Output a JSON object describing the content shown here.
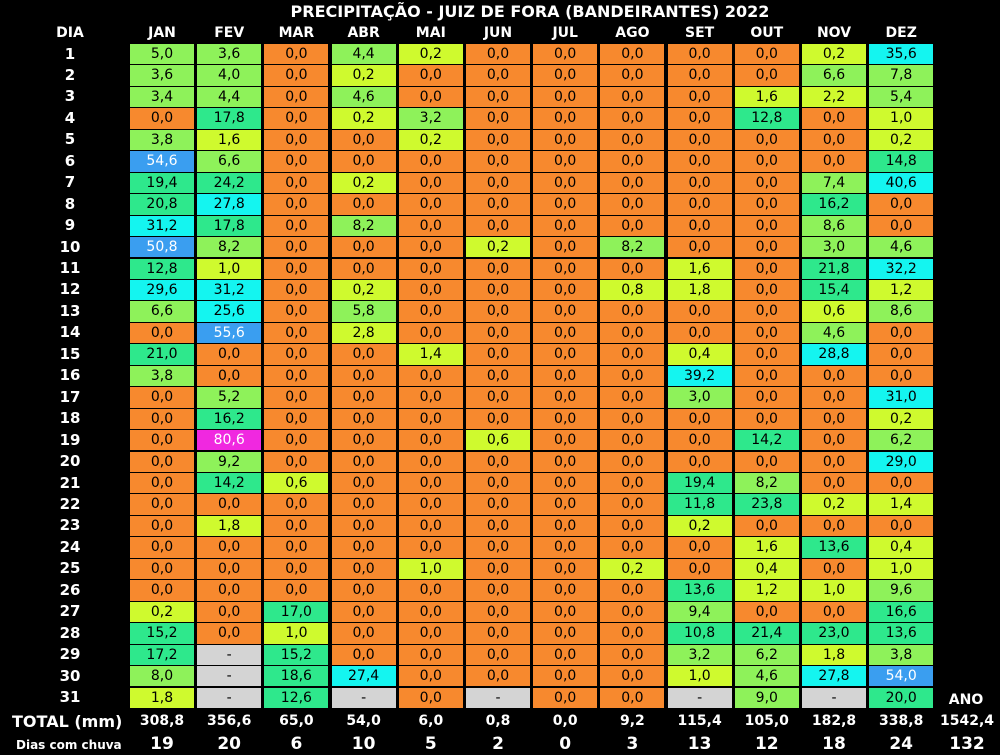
{
  "title": "PRECIPITAÇÃO - JUIZ DE FORA (BANDEIRANTES) 2022",
  "day_header": "DIA",
  "year_header": "ANO",
  "total_label": "TOTAL (mm)",
  "rainy_label": "Dias com chuva",
  "year_total": "1542,4",
  "year_rainy": "132",
  "colors": {
    "zero": "#f7892e",
    "vlow": "#cffa2e",
    "low": "#8ef25a",
    "mid": "#2ee88c",
    "high": "#14f5f0",
    "vhigh": "#3a9ef0",
    "extreme": "#f028e0",
    "na": "#d4d4d4"
  },
  "chart_data": {
    "type": "table",
    "title": "PRECIPITAÇÃO - JUIZ DE FORA (BANDEIRANTES) 2022",
    "months": [
      "JAN",
      "FEV",
      "MAR",
      "ABR",
      "MAI",
      "JUN",
      "JUL",
      "AGO",
      "SET",
      "OUT",
      "NOV",
      "DEZ"
    ],
    "days": [
      "1",
      "2",
      "3",
      "4",
      "5",
      "6",
      "7",
      "8",
      "9",
      "10",
      "11",
      "12",
      "13",
      "14",
      "15",
      "16",
      "17",
      "18",
      "19",
      "20",
      "21",
      "22",
      "23",
      "24",
      "25",
      "26",
      "27",
      "28",
      "29",
      "30",
      "31"
    ],
    "values": [
      [
        "5,0",
        "3,6",
        "0,0",
        "4,4",
        "0,2",
        "0,0",
        "0,0",
        "0,0",
        "0,0",
        "0,0",
        "0,2",
        "35,6"
      ],
      [
        "3,6",
        "4,0",
        "0,0",
        "0,2",
        "0,0",
        "0,0",
        "0,0",
        "0,0",
        "0,0",
        "0,0",
        "6,6",
        "7,8"
      ],
      [
        "3,4",
        "4,4",
        "0,0",
        "4,6",
        "0,0",
        "0,0",
        "0,0",
        "0,0",
        "0,0",
        "1,6",
        "2,2",
        "5,4"
      ],
      [
        "0,0",
        "17,8",
        "0,0",
        "0,2",
        "3,2",
        "0,0",
        "0,0",
        "0,0",
        "0,0",
        "12,8",
        "0,0",
        "1,0"
      ],
      [
        "3,8",
        "1,6",
        "0,0",
        "0,0",
        "0,2",
        "0,0",
        "0,0",
        "0,0",
        "0,0",
        "0,0",
        "0,0",
        "0,2"
      ],
      [
        "54,6",
        "6,6",
        "0,0",
        "0,0",
        "0,0",
        "0,0",
        "0,0",
        "0,0",
        "0,0",
        "0,0",
        "0,0",
        "14,8"
      ],
      [
        "19,4",
        "24,2",
        "0,0",
        "0,2",
        "0,0",
        "0,0",
        "0,0",
        "0,0",
        "0,0",
        "0,0",
        "7,4",
        "40,6"
      ],
      [
        "20,8",
        "27,8",
        "0,0",
        "0,0",
        "0,0",
        "0,0",
        "0,0",
        "0,0",
        "0,0",
        "0,0",
        "16,2",
        "0,0"
      ],
      [
        "31,2",
        "17,8",
        "0,0",
        "8,2",
        "0,0",
        "0,0",
        "0,0",
        "0,0",
        "0,0",
        "0,0",
        "8,6",
        "0,0"
      ],
      [
        "50,8",
        "8,2",
        "0,0",
        "0,0",
        "0,0",
        "0,2",
        "0,0",
        "8,2",
        "0,0",
        "0,0",
        "3,0",
        "4,6"
      ],
      [
        "12,8",
        "1,0",
        "0,0",
        "0,0",
        "0,0",
        "0,0",
        "0,0",
        "0,0",
        "1,6",
        "0,0",
        "21,8",
        "32,2"
      ],
      [
        "29,6",
        "31,2",
        "0,0",
        "0,2",
        "0,0",
        "0,0",
        "0,0",
        "0,8",
        "1,8",
        "0,0",
        "15,4",
        "1,2"
      ],
      [
        "6,6",
        "25,6",
        "0,0",
        "5,8",
        "0,0",
        "0,0",
        "0,0",
        "0,0",
        "0,0",
        "0,0",
        "0,6",
        "8,6"
      ],
      [
        "0,0",
        "55,6",
        "0,0",
        "2,8",
        "0,0",
        "0,0",
        "0,0",
        "0,0",
        "0,0",
        "0,0",
        "4,6",
        "0,0"
      ],
      [
        "21,0",
        "0,0",
        "0,0",
        "0,0",
        "1,4",
        "0,0",
        "0,0",
        "0,0",
        "0,4",
        "0,0",
        "28,8",
        "0,0"
      ],
      [
        "3,8",
        "0,0",
        "0,0",
        "0,0",
        "0,0",
        "0,0",
        "0,0",
        "0,0",
        "39,2",
        "0,0",
        "0,0",
        "0,0"
      ],
      [
        "0,0",
        "5,2",
        "0,0",
        "0,0",
        "0,0",
        "0,0",
        "0,0",
        "0,0",
        "3,0",
        "0,0",
        "0,0",
        "31,0"
      ],
      [
        "0,0",
        "16,2",
        "0,0",
        "0,0",
        "0,0",
        "0,0",
        "0,0",
        "0,0",
        "0,0",
        "0,0",
        "0,0",
        "0,2"
      ],
      [
        "0,0",
        "80,6",
        "0,0",
        "0,0",
        "0,0",
        "0,6",
        "0,0",
        "0,0",
        "0,0",
        "14,2",
        "0,0",
        "6,2"
      ],
      [
        "0,0",
        "9,2",
        "0,0",
        "0,0",
        "0,0",
        "0,0",
        "0,0",
        "0,0",
        "0,0",
        "0,0",
        "0,0",
        "29,0"
      ],
      [
        "0,0",
        "14,2",
        "0,6",
        "0,0",
        "0,0",
        "0,0",
        "0,0",
        "0,0",
        "19,4",
        "8,2",
        "0,0",
        "0,0"
      ],
      [
        "0,0",
        "0,0",
        "0,0",
        "0,0",
        "0,0",
        "0,0",
        "0,0",
        "0,0",
        "11,8",
        "23,8",
        "0,2",
        "1,4"
      ],
      [
        "0,0",
        "1,8",
        "0,0",
        "0,0",
        "0,0",
        "0,0",
        "0,0",
        "0,0",
        "0,2",
        "0,0",
        "0,0",
        "0,0"
      ],
      [
        "0,0",
        "0,0",
        "0,0",
        "0,0",
        "0,0",
        "0,0",
        "0,0",
        "0,0",
        "0,0",
        "1,6",
        "13,6",
        "0,4"
      ],
      [
        "0,0",
        "0,0",
        "0,0",
        "0,0",
        "1,0",
        "0,0",
        "0,0",
        "0,2",
        "0,0",
        "0,4",
        "0,0",
        "1,0"
      ],
      [
        "0,0",
        "0,0",
        "0,0",
        "0,0",
        "0,0",
        "0,0",
        "0,0",
        "0,0",
        "13,6",
        "1,2",
        "1,0",
        "9,6"
      ],
      [
        "0,2",
        "0,0",
        "17,0",
        "0,0",
        "0,0",
        "0,0",
        "0,0",
        "0,0",
        "9,4",
        "0,0",
        "0,0",
        "16,6"
      ],
      [
        "15,2",
        "0,0",
        "1,0",
        "0,0",
        "0,0",
        "0,0",
        "0,0",
        "0,0",
        "10,8",
        "21,4",
        "23,0",
        "13,6"
      ],
      [
        "17,2",
        "-",
        "15,2",
        "0,0",
        "0,0",
        "0,0",
        "0,0",
        "0,0",
        "3,2",
        "6,2",
        "1,8",
        "3,8"
      ],
      [
        "8,0",
        "-",
        "18,6",
        "27,4",
        "0,0",
        "0,0",
        "0,0",
        "0,0",
        "1,0",
        "4,6",
        "27,8",
        "54,0"
      ],
      [
        "1,8",
        "-",
        "12,6",
        "-",
        "0,0",
        "-",
        "0,0",
        "0,0",
        "-",
        "9,0",
        "-",
        "20,0"
      ]
    ],
    "totals": [
      "308,8",
      "356,6",
      "65,0",
      "54,0",
      "6,0",
      "0,8",
      "0,0",
      "9,2",
      "115,4",
      "105,0",
      "182,8",
      "338,8"
    ],
    "rainy_days": [
      "19",
      "20",
      "6",
      "10",
      "5",
      "2",
      "0",
      "3",
      "13",
      "12",
      "18",
      "24"
    ],
    "year_total": "1542,4",
    "year_rainy_days": "132"
  }
}
